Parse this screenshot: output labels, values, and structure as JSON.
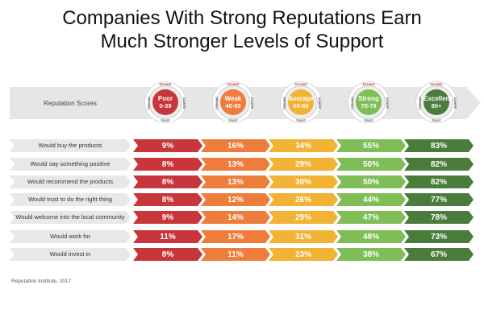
{
  "title_lines": [
    "Companies With Strong Reputations Earn",
    "Much Stronger Levels of Support"
  ],
  "band_label": "Reputation Scores",
  "gauge_ring_labels": {
    "top": "ESTEEM",
    "bottom": "TRUST",
    "left": "FEELING",
    "right": "ADMIRE"
  },
  "source": "Reputation Institute, 2017",
  "chart_data": {
    "type": "table",
    "columns": [
      {
        "level": "Poor",
        "range": "0-39",
        "color": "#c8353a"
      },
      {
        "level": "Weak",
        "range": "40-59",
        "color": "#ee7c3a"
      },
      {
        "level": "Average",
        "range": "60-69",
        "color": "#f2b234"
      },
      {
        "level": "Strong",
        "range": "70-79",
        "color": "#7fbd57"
      },
      {
        "level": "Excellent",
        "range": "80+",
        "color": "#4a7d3b"
      }
    ],
    "rows": [
      {
        "label": "Would buy the products",
        "values": [
          "9%",
          "16%",
          "34%",
          "55%",
          "83%"
        ]
      },
      {
        "label": "Would say something positive",
        "values": [
          "8%",
          "13%",
          "29%",
          "50%",
          "82%"
        ]
      },
      {
        "label": "Would recommend the products",
        "values": [
          "8%",
          "13%",
          "30%",
          "50%",
          "82%"
        ]
      },
      {
        "label": "Would trust to do the right thing",
        "values": [
          "8%",
          "12%",
          "26%",
          "44%",
          "77%"
        ]
      },
      {
        "label": "Would welcome into the local community",
        "values": [
          "9%",
          "14%",
          "29%",
          "47%",
          "78%"
        ]
      },
      {
        "label": "Would work for",
        "values": [
          "11%",
          "17%",
          "31%",
          "48%",
          "73%"
        ]
      },
      {
        "label": "Would invest in",
        "values": [
          "8%",
          "11%",
          "23%",
          "38%",
          "67%"
        ]
      }
    ]
  }
}
